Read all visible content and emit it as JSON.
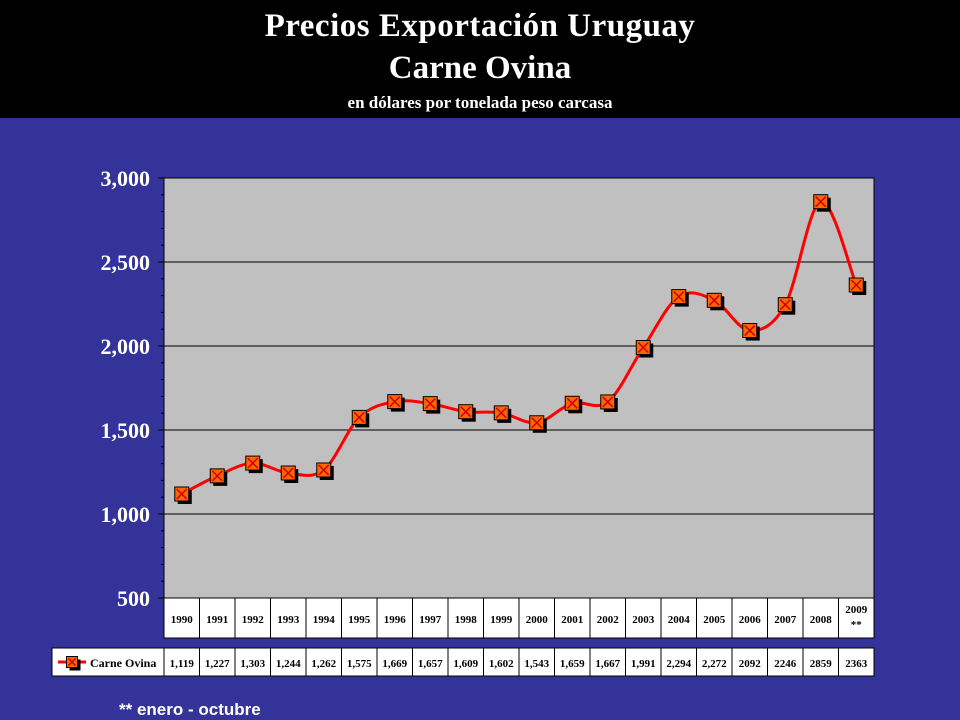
{
  "header": {
    "title": "Precios Exportación Uruguay",
    "subtitle": "Carne Ovina",
    "unit": "en dólares por tonelada peso carcasa"
  },
  "footnote": "** enero - octubre",
  "colors": {
    "background": "#333399",
    "header": "#000000",
    "plot_area": "#c0c0c0",
    "line": "#ff0000",
    "marker_fill": "#ff6600",
    "marker_shadow": "#000000"
  },
  "chart_data": {
    "type": "line",
    "categories": [
      "1990",
      "1991",
      "1992",
      "1993",
      "1994",
      "1995",
      "1996",
      "1997",
      "1998",
      "1999",
      "2000",
      "2001",
      "2002",
      "2003",
      "2004",
      "2005",
      "2006",
      "2007",
      "2008",
      "2009"
    ],
    "category_notes": {
      "2009": "**"
    },
    "series": [
      {
        "name": "Carne Ovina",
        "values": [
          1119,
          1227,
          1303,
          1244,
          1262,
          1575,
          1669,
          1657,
          1609,
          1602,
          1543,
          1659,
          1667,
          1991,
          2294,
          2272,
          2092,
          2246,
          2859,
          2363
        ],
        "table_labels": [
          "1,119",
          "1,227",
          "1,303",
          "1,244",
          "1,262",
          "1,575",
          "1,669",
          "1,657",
          "1,609",
          "1,602",
          "1,543",
          "1,659",
          "1,667",
          "1,991",
          "2,294",
          "2,272",
          "2092",
          "2246",
          "2859",
          "2363"
        ]
      }
    ],
    "ylim": [
      500,
      3000
    ],
    "yticks": [
      500,
      1000,
      1500,
      2000,
      2500,
      3000
    ],
    "ytick_labels": [
      "500",
      "1,000",
      "1,500",
      "2,000",
      "2,500",
      "3,000"
    ],
    "grid": true,
    "smooth": true,
    "marker": "square-x",
    "data_table": true,
    "legend_placement": "data-table-left"
  }
}
